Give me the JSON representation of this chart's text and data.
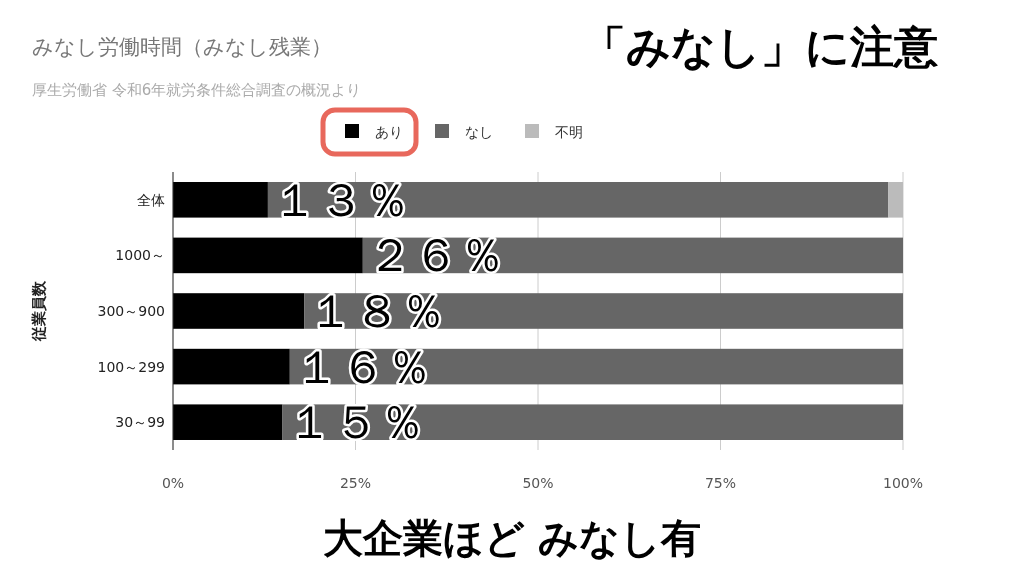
{
  "chart_data": {
    "type": "bar",
    "orientation": "horizontal",
    "stacked": true,
    "title": "みなし労働時間（みなし残業）",
    "subtitle": "厚生労働省 令和6年就労条件総合調査の概況より",
    "ylabel": "従業員数",
    "categories": [
      "全体",
      "1000～",
      "300～900",
      "100～299",
      "30～99"
    ],
    "series": [
      {
        "name": "あり",
        "color": "#000000",
        "values": [
          13,
          26,
          18,
          16,
          15
        ],
        "value_labels": [
          "１３％",
          "２６％",
          "１８％",
          "１６％",
          "１５％"
        ]
      },
      {
        "name": "なし",
        "color": "#666666",
        "values": [
          85,
          74,
          82,
          84,
          85
        ]
      },
      {
        "name": "不明",
        "color": "#bbbbbb",
        "values": [
          2,
          0,
          0,
          0,
          0
        ]
      }
    ],
    "xlim": [
      0,
      100
    ],
    "xticks": [
      {
        "value": 0,
        "label": "0%"
      },
      {
        "value": 25,
        "label": "25%"
      },
      {
        "value": 50,
        "label": "50%"
      },
      {
        "value": 75,
        "label": "75%"
      },
      {
        "value": 100,
        "label": "100%"
      }
    ],
    "grid": "x",
    "legend": "top",
    "annotations": [
      "「みなし」に注意",
      "大企業ほど みなし有"
    ]
  }
}
